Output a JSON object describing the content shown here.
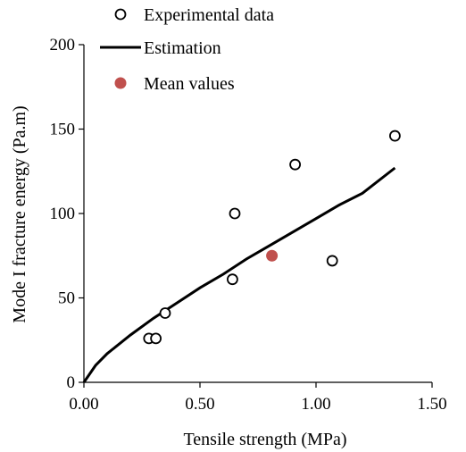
{
  "chart_data": {
    "type": "scatter",
    "title": "",
    "xlabel": "Tensile strength (MPa)",
    "ylabel": "Mode I fracture energy (Pa.m)",
    "xlim": [
      0,
      1.5
    ],
    "ylim": [
      0,
      200
    ],
    "x_ticks": [
      "0.00",
      "0.50",
      "1.00",
      "1.50"
    ],
    "y_ticks": [
      "0",
      "50",
      "100",
      "150",
      "200"
    ],
    "grid": false,
    "legend_position": "top-left",
    "series": [
      {
        "name": "Experimental data",
        "kind": "scatter",
        "marker": "open-circle",
        "color": "#000000",
        "points": [
          {
            "x": 0.28,
            "y": 26
          },
          {
            "x": 0.31,
            "y": 26
          },
          {
            "x": 0.35,
            "y": 41
          },
          {
            "x": 0.64,
            "y": 61
          },
          {
            "x": 0.65,
            "y": 100
          },
          {
            "x": 0.91,
            "y": 129
          },
          {
            "x": 1.07,
            "y": 72
          },
          {
            "x": 1.34,
            "y": 146
          }
        ]
      },
      {
        "name": "Estimation",
        "kind": "line",
        "color": "#000000",
        "points": [
          {
            "x": 0.0,
            "y": 0
          },
          {
            "x": 0.05,
            "y": 10
          },
          {
            "x": 0.1,
            "y": 17
          },
          {
            "x": 0.2,
            "y": 28
          },
          {
            "x": 0.3,
            "y": 38
          },
          {
            "x": 0.4,
            "y": 47
          },
          {
            "x": 0.5,
            "y": 56
          },
          {
            "x": 0.6,
            "y": 64
          },
          {
            "x": 0.7,
            "y": 73
          },
          {
            "x": 0.8,
            "y": 81
          },
          {
            "x": 0.9,
            "y": 89
          },
          {
            "x": 1.0,
            "y": 97
          },
          {
            "x": 1.1,
            "y": 105
          },
          {
            "x": 1.2,
            "y": 112
          },
          {
            "x": 1.34,
            "y": 127
          }
        ]
      },
      {
        "name": "Mean values",
        "kind": "scatter",
        "marker": "filled-circle",
        "color": "#c0504d",
        "points": [
          {
            "x": 0.81,
            "y": 75
          }
        ]
      }
    ]
  }
}
